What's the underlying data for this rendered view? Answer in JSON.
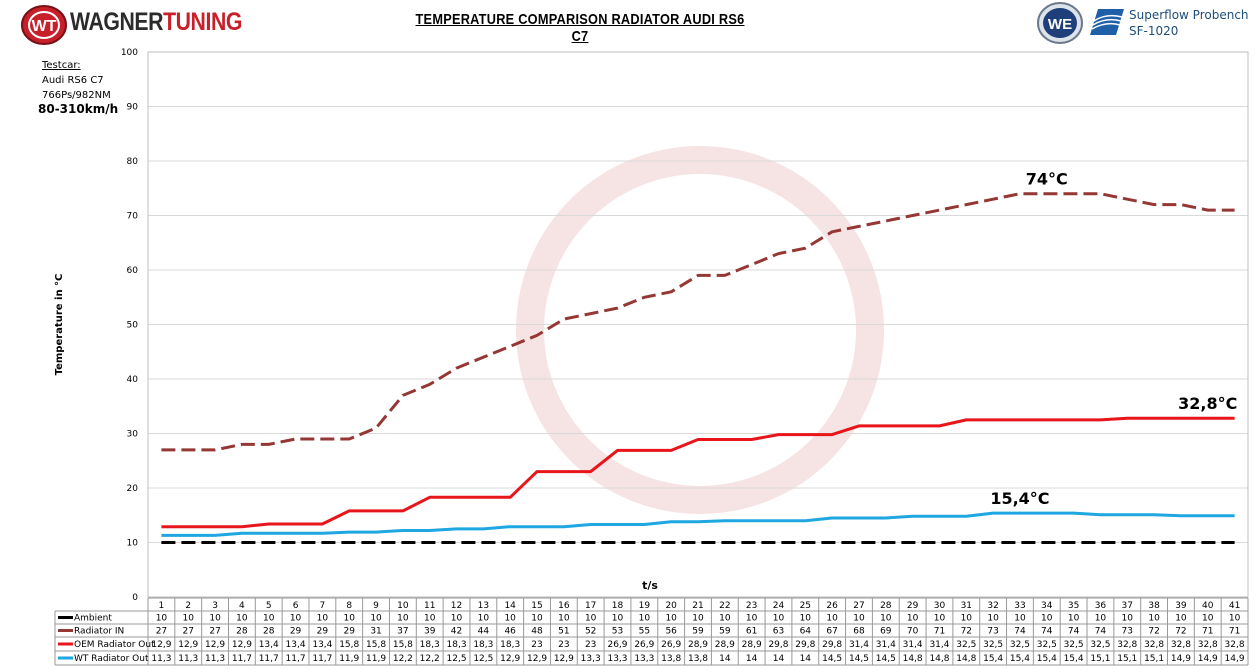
{
  "header": {
    "brand_left": "WAGNER",
    "brand_right": "TUNING",
    "logo_text": "WT",
    "right_logo_text": "WE",
    "bench_name": "Superflow Probench",
    "bench_model": "SF-1020"
  },
  "testcar": {
    "label": "Testcar:",
    "car": "Audi RS6 C7",
    "power": "766Ps/982NM",
    "speed_range": "80-310km/h"
  },
  "colors": {
    "ambient": "#000000",
    "radiator_in": "#953735",
    "oem_out": "#e8161b",
    "wt_out": "#1ea7e1",
    "grid": "#d9d9d9"
  },
  "chart_data": {
    "type": "line",
    "title": "TEMPERATURE COMPARISON RADIATOR AUDI RS6 C7",
    "xlabel": "t/s",
    "ylabel": "Temperature in °C",
    "ylim": [
      0,
      100
    ],
    "yticks": [
      0,
      10,
      20,
      30,
      40,
      50,
      60,
      70,
      80,
      90,
      100
    ],
    "grid": true,
    "legend": "bottom-table",
    "categories": [
      1,
      2,
      3,
      4,
      5,
      6,
      7,
      8,
      9,
      10,
      11,
      12,
      13,
      14,
      15,
      16,
      17,
      18,
      19,
      20,
      21,
      22,
      23,
      24,
      25,
      26,
      27,
      28,
      29,
      30,
      31,
      32,
      33,
      34,
      35,
      36,
      37,
      38,
      39,
      40,
      41
    ],
    "series": [
      {
        "name": "Ambient",
        "style": "dashed",
        "values": [
          10,
          10,
          10,
          10,
          10,
          10,
          10,
          10,
          10,
          10,
          10,
          10,
          10,
          10,
          10,
          10,
          10,
          10,
          10,
          10,
          10,
          10,
          10,
          10,
          10,
          10,
          10,
          10,
          10,
          10,
          10,
          10,
          10,
          10,
          10,
          10,
          10,
          10,
          10,
          10,
          10
        ]
      },
      {
        "name": "Radiator IN",
        "style": "dashed",
        "values": [
          27,
          27,
          27,
          28,
          28,
          29,
          29,
          29,
          31,
          37,
          39,
          42,
          44,
          46,
          48,
          51,
          52,
          53,
          55,
          56,
          59,
          59,
          61,
          63,
          64,
          67,
          68,
          69,
          70,
          71,
          72,
          73,
          74,
          74,
          74,
          74,
          73,
          72,
          72,
          71,
          71
        ]
      },
      {
        "name": "OEM Radiator Out",
        "style": "solid",
        "values": [
          12.9,
          12.9,
          12.9,
          12.9,
          13.4,
          13.4,
          13.4,
          15.8,
          15.8,
          15.8,
          18.3,
          18.3,
          18.3,
          18.3,
          23,
          23,
          23,
          26.9,
          26.9,
          26.9,
          28.9,
          28.9,
          28.9,
          29.8,
          29.8,
          29.8,
          31.4,
          31.4,
          31.4,
          31.4,
          32.5,
          32.5,
          32.5,
          32.5,
          32.5,
          32.5,
          32.8,
          32.8,
          32.8,
          32.8,
          32.8
        ]
      },
      {
        "name": "WT Radiator Out",
        "style": "solid",
        "values": [
          11.3,
          11.3,
          11.3,
          11.7,
          11.7,
          11.7,
          11.7,
          11.9,
          11.9,
          12.2,
          12.2,
          12.5,
          12.5,
          12.9,
          12.9,
          12.9,
          13.3,
          13.3,
          13.3,
          13.8,
          13.8,
          14,
          14,
          14,
          14,
          14.5,
          14.5,
          14.5,
          14.8,
          14.8,
          14.8,
          15.4,
          15.4,
          15.4,
          15.4,
          15.1,
          15.1,
          15.1,
          14.9,
          14.9,
          14.9
        ]
      }
    ],
    "annotations": [
      {
        "text": "74°C",
        "series": "Radiator IN",
        "x": 34
      },
      {
        "text": "32,8°C",
        "series": "OEM Radiator Out",
        "x": 40
      },
      {
        "text": "15,4°C",
        "series": "WT Radiator Out",
        "x": 33
      }
    ]
  }
}
